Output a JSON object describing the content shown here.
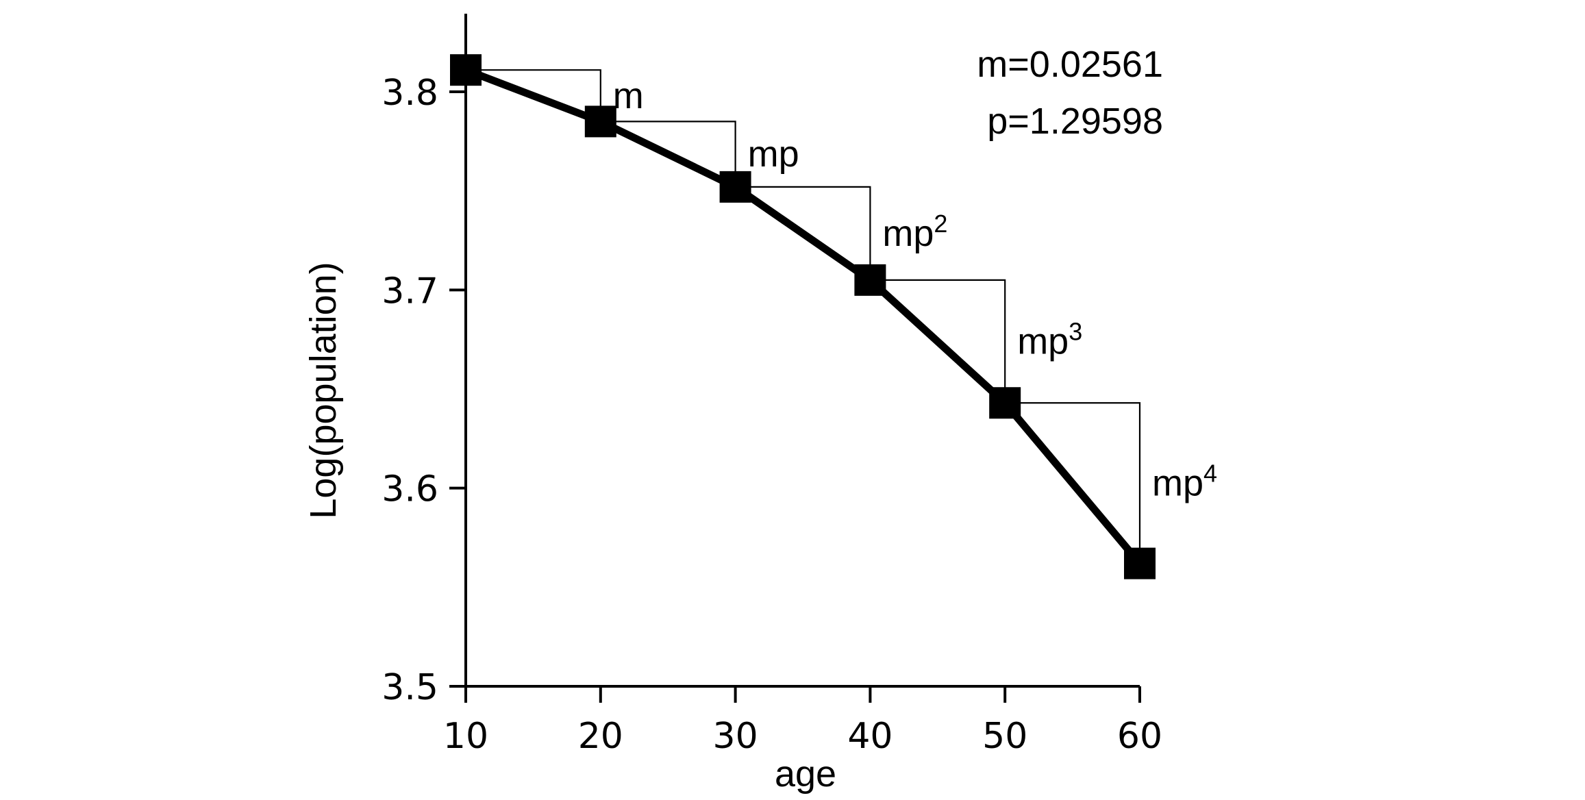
{
  "chart_data": {
    "type": "line",
    "title": "",
    "xlabel": "age",
    "ylabel": "Log(population)",
    "xlim": [
      10,
      60
    ],
    "ylim": [
      3.5,
      3.84
    ],
    "xticks": [
      "10",
      "20",
      "30",
      "40",
      "50",
      "60"
    ],
    "yticks": [
      "3.5",
      "3.6",
      "3.7",
      "3.8"
    ],
    "grid": false,
    "legend": "none",
    "x": [
      10,
      20,
      30,
      40,
      50,
      60
    ],
    "series": [
      {
        "values": [
          3.811,
          3.785,
          3.752,
          3.705,
          3.643,
          3.562
        ],
        "marker": "square",
        "color": "#000000"
      }
    ],
    "step_annotations": [
      {
        "base": "m",
        "sup": ""
      },
      {
        "base": "mp",
        "sup": ""
      },
      {
        "base": "mp",
        "sup": "2"
      },
      {
        "base": "mp",
        "sup": "3"
      },
      {
        "base": "mp",
        "sup": "4"
      }
    ],
    "parameters": {
      "m": "m=0.02561",
      "p": "p=1.29598"
    }
  }
}
